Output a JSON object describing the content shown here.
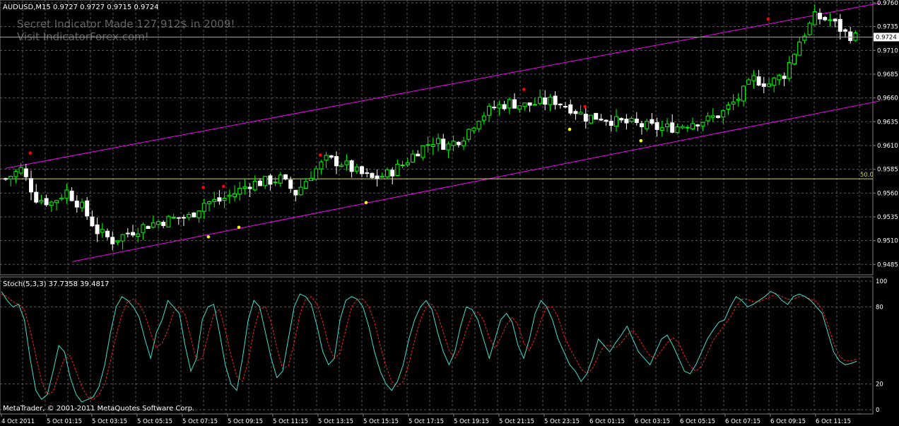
{
  "symbol_header": "AUDUSD,M15  0.9727 0.9727 0.9715 0.9724",
  "watermark": [
    "Secret Indicator Made 127,912$ in 2009!",
    "Visit IndicatorForex.com!"
  ],
  "copyright": "MetaTrader, © 2001-2011 MetaQuotes Software Corp.",
  "stoch_header": "Stoch(5,3,3) 37.7358 39.4817",
  "colors": {
    "background": "#000000",
    "grid": "#5a5a5a",
    "bull_candle": "#00ff00",
    "bear_candle": "#ffffff",
    "channel": "#ff00ff",
    "fib_level": "#d8d860",
    "price_line": "#a0a0a0",
    "stoch_main": "#40e0d0",
    "stoch_signal": "#ff2020",
    "fractal_up": "#ff0000",
    "fractal_down": "#ffff00",
    "axis_text": "#ffffff"
  },
  "chart_data": [
    {
      "type": "candlestick",
      "title": "AUDUSD,M15  0.9727 0.9727 0.9715 0.9724",
      "y_ticks": [
        "0.9760",
        "0.9735",
        "0.9710",
        "0.9685",
        "0.9660",
        "0.9635",
        "0.9610",
        "0.9585",
        "0.9560",
        "0.9535",
        "0.9510",
        "0.9485"
      ],
      "ylim": [
        0.948,
        0.976
      ],
      "current_price": "0.9724",
      "fib_level": {
        "label": "50.0",
        "value": 0.9575
      },
      "channel_upper": [
        [
          0,
          0.9586
        ],
        [
          131,
          0.976
        ]
      ],
      "channel_lower": [
        [
          10,
          0.9488
        ],
        [
          131,
          0.9657
        ]
      ],
      "close_path": [
        [
          0,
          0.9575
        ],
        [
          3,
          0.9585
        ],
        [
          6,
          0.9555
        ],
        [
          9,
          0.955
        ],
        [
          12,
          0.9562
        ],
        [
          15,
          0.9545
        ],
        [
          18,
          0.952
        ],
        [
          21,
          0.951
        ],
        [
          24,
          0.9518
        ],
        [
          27,
          0.9525
        ],
        [
          30,
          0.953
        ],
        [
          33,
          0.9533
        ],
        [
          36,
          0.9535
        ],
        [
          39,
          0.955
        ],
        [
          42,
          0.9552
        ],
        [
          45,
          0.956
        ],
        [
          48,
          0.957
        ],
        [
          51,
          0.9572
        ],
        [
          54,
          0.9575
        ],
        [
          57,
          0.956
        ],
        [
          60,
          0.958
        ],
        [
          63,
          0.9595
        ],
        [
          66,
          0.9592
        ],
        [
          69,
          0.9582
        ],
        [
          72,
          0.9575
        ],
        [
          75,
          0.958
        ],
        [
          78,
          0.959
        ],
        [
          81,
          0.9605
        ],
        [
          84,
          0.9615
        ],
        [
          87,
          0.961
        ],
        [
          90,
          0.962
        ],
        [
          93,
          0.964
        ],
        [
          96,
          0.965
        ],
        [
          99,
          0.9655
        ],
        [
          102,
          0.9652
        ],
        [
          105,
          0.9655
        ],
        [
          108,
          0.9657
        ],
        [
          111,
          0.965
        ],
        [
          114,
          0.964
        ],
        [
          117,
          0.964
        ],
        [
          120,
          0.9635
        ],
        [
          123,
          0.9633
        ],
        [
          126,
          0.963
        ],
        [
          129,
          0.9628
        ],
        [
          132,
          0.963
        ],
        [
          135,
          0.9635
        ],
        [
          138,
          0.9637
        ],
        [
          141,
          0.9645
        ],
        [
          144,
          0.966
        ],
        [
          147,
          0.968
        ],
        [
          150,
          0.9675
        ],
        [
          153,
          0.9685
        ],
        [
          156,
          0.972
        ],
        [
          159,
          0.9745
        ],
        [
          162,
          0.9742
        ],
        [
          165,
          0.9728
        ],
        [
          167,
          0.9724
        ]
      ],
      "fractals_up": [
        [
          4,
          0.9602
        ],
        [
          38,
          0.9566
        ],
        [
          42,
          0.9567
        ],
        [
          61,
          0.96
        ],
        [
          101,
          0.9669
        ],
        [
          113,
          0.9651
        ],
        [
          149,
          0.9743
        ]
      ],
      "fractals_down": [
        [
          39,
          0.9514
        ],
        [
          45,
          0.9524
        ],
        [
          70,
          0.955
        ],
        [
          110,
          0.9627
        ],
        [
          124,
          0.9615
        ]
      ],
      "x_tick_labels": [
        "4 Oct 2011",
        "5 Oct 01:15",
        "5 Oct 03:15",
        "5 Oct 05:15",
        "5 Oct 07:15",
        "5 Oct 09:15",
        "5 Oct 11:15",
        "5 Oct 13:15",
        "5 Oct 15:15",
        "5 Oct 17:15",
        "5 Oct 19:15",
        "5 Oct 21:15",
        "5 Oct 23:15",
        "6 Oct 01:15",
        "6 Oct 03:15",
        "6 Oct 05:15",
        "6 Oct 07:15",
        "6 Oct 09:15",
        "6 Oct 11:15"
      ]
    },
    {
      "type": "line",
      "title": "Stoch(5,3,3) 37.7358 39.4817",
      "y_ticks": [
        "100",
        "80",
        "20",
        "0"
      ],
      "ylim": [
        0,
        100
      ],
      "series": [
        {
          "name": "main",
          "values": [
            92,
            85,
            80,
            82,
            70,
            40,
            15,
            8,
            12,
            30,
            50,
            45,
            25,
            12,
            6,
            8,
            10,
            18,
            35,
            60,
            80,
            88,
            85,
            80,
            72,
            55,
            40,
            60,
            70,
            85,
            80,
            75,
            50,
            30,
            40,
            70,
            80,
            82,
            60,
            35,
            20,
            15,
            40,
            70,
            85,
            80,
            60,
            40,
            25,
            30,
            55,
            80,
            90,
            88,
            82,
            65,
            45,
            35,
            40,
            70,
            85,
            88,
            86,
            80,
            65,
            45,
            30,
            20,
            15,
            22,
            35,
            55,
            70,
            80,
            85,
            78,
            60,
            45,
            35,
            45,
            65,
            80,
            78,
            70,
            55,
            40,
            55,
            70,
            75,
            68,
            50,
            40,
            55,
            75,
            85,
            80,
            70,
            55,
            45,
            35,
            30,
            22,
            28,
            40,
            55,
            50,
            45,
            52,
            58,
            65,
            55,
            45,
            40,
            35,
            45,
            55,
            58,
            50,
            40,
            30,
            28,
            35,
            45,
            55,
            62,
            68,
            70,
            80,
            88,
            85,
            80,
            82,
            85,
            88,
            92,
            90,
            85,
            82,
            88,
            90,
            88,
            85,
            80,
            75,
            60,
            45,
            38,
            35,
            36,
            37.7
          ]
        },
        {
          "name": "signal",
          "values": [
            90,
            88,
            84,
            82,
            78,
            62,
            42,
            22,
            12,
            14,
            28,
            40,
            42,
            30,
            18,
            10,
            8,
            12,
            20,
            38,
            58,
            74,
            84,
            86,
            82,
            74,
            60,
            48,
            52,
            62,
            76,
            80,
            74,
            56,
            38,
            40,
            58,
            74,
            78,
            62,
            42,
            26,
            22,
            38,
            62,
            78,
            80,
            68,
            48,
            32,
            34,
            52,
            74,
            86,
            88,
            82,
            68,
            50,
            40,
            44,
            62,
            80,
            86,
            86,
            80,
            68,
            50,
            34,
            22,
            18,
            22,
            36,
            54,
            70,
            80,
            82,
            74,
            60,
            46,
            40,
            48,
            62,
            74,
            76,
            70,
            56,
            48,
            56,
            66,
            72,
            66,
            52,
            46,
            56,
            70,
            80,
            80,
            72,
            58,
            48,
            40,
            32,
            28,
            32,
            42,
            50,
            50,
            48,
            52,
            58,
            62,
            56,
            48,
            42,
            40,
            46,
            52,
            56,
            52,
            42,
            34,
            30,
            34,
            44,
            54,
            60,
            66,
            72,
            80,
            86,
            86,
            84,
            84,
            86,
            88,
            90,
            88,
            86,
            86,
            88,
            88,
            86,
            84,
            78,
            66,
            52,
            42,
            38,
            38,
            39.5
          ]
        }
      ]
    }
  ]
}
